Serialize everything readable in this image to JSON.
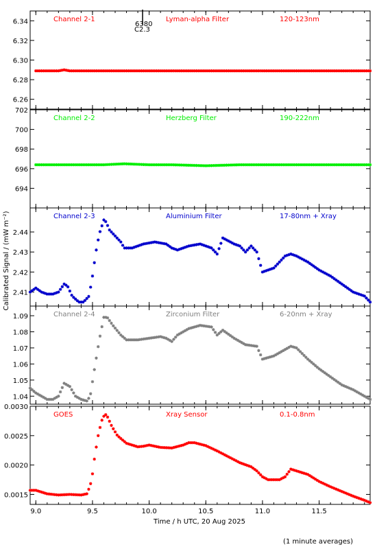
{
  "figure": {
    "ylabel": "Calibrated Signal / (mW m⁻²)",
    "xlabel": "Time / h UTC, 20 Aug 2025",
    "footnote": "(1 minute averages)",
    "annotation": {
      "top": "6380",
      "bottom": "C2.3"
    }
  },
  "chart_data": [
    {
      "type": "scatter",
      "marker": "asterisk",
      "channel": "Channel 2-1",
      "filter": "Lyman-alpha Filter",
      "band": "120-123nm",
      "color": "#ff0000",
      "xlim": [
        8.95,
        11.95
      ],
      "ylim": [
        6.25,
        6.35
      ],
      "yticks": [
        6.26,
        6.28,
        6.3,
        6.32,
        6.34
      ],
      "yticklabels": [
        "6.26",
        "6.28",
        "6.30",
        "6.32",
        "6.34"
      ],
      "x": [
        9.0,
        9.2,
        9.25,
        9.3,
        9.5,
        10.0,
        10.5,
        10.9,
        11.0,
        11.5,
        11.95
      ],
      "y": [
        6.289,
        6.289,
        6.29,
        6.289,
        6.289,
        6.289,
        6.289,
        6.289,
        6.289,
        6.289,
        6.289
      ]
    },
    {
      "type": "scatter",
      "marker": "asterisk",
      "channel": "Channel 2-2",
      "filter": "Herzberg Filter",
      "band": "190-222nm",
      "color": "#00ee00",
      "xlim": [
        8.95,
        11.95
      ],
      "ylim": [
        692,
        702
      ],
      "yticks": [
        694,
        696,
        698,
        700,
        702
      ],
      "yticklabels": [
        "694",
        "696",
        "698",
        "700",
        "702"
      ],
      "x": [
        9.0,
        9.3,
        9.6,
        9.78,
        10.0,
        10.2,
        10.5,
        10.8,
        11.0,
        11.3,
        11.5,
        11.95
      ],
      "y": [
        696.4,
        696.4,
        696.4,
        696.5,
        696.4,
        696.4,
        696.3,
        696.4,
        696.4,
        696.4,
        696.4,
        696.4
      ]
    },
    {
      "type": "scatter",
      "marker": "asterisk",
      "channel": "Channel 2-3",
      "filter": "Aluminium Filter",
      "band": "17-80nm + Xray",
      "color": "#0000cc",
      "xlim": [
        8.95,
        11.95
      ],
      "ylim": [
        2.403,
        2.452
      ],
      "yticks": [
        2.41,
        2.42,
        2.43,
        2.44
      ],
      "yticklabels": [
        "2.41",
        "2.42",
        "2.43",
        "2.44"
      ],
      "x": [
        8.95,
        9.0,
        9.05,
        9.1,
        9.15,
        9.2,
        9.25,
        9.28,
        9.32,
        9.38,
        9.42,
        9.47,
        9.5,
        9.53,
        9.56,
        9.6,
        9.62,
        9.65,
        9.7,
        9.75,
        9.78,
        9.85,
        9.95,
        10.05,
        10.15,
        10.2,
        10.25,
        10.35,
        10.45,
        10.55,
        10.6,
        10.65,
        10.75,
        10.8,
        10.85,
        10.9,
        10.95,
        11.0,
        11.1,
        11.2,
        11.25,
        11.3,
        11.4,
        11.45,
        11.5,
        11.6,
        11.7,
        11.8,
        11.9,
        11.95
      ],
      "y": [
        2.41,
        2.412,
        2.41,
        2.409,
        2.409,
        2.41,
        2.414,
        2.413,
        2.408,
        2.405,
        2.405,
        2.408,
        2.418,
        2.43,
        2.439,
        2.446,
        2.445,
        2.441,
        2.438,
        2.435,
        2.432,
        2.432,
        2.434,
        2.435,
        2.434,
        2.432,
        2.431,
        2.433,
        2.434,
        2.432,
        2.429,
        2.437,
        2.434,
        2.433,
        2.43,
        2.433,
        2.43,
        2.42,
        2.422,
        2.428,
        2.429,
        2.428,
        2.425,
        2.423,
        2.421,
        2.418,
        2.414,
        2.41,
        2.408,
        2.405
      ]
    },
    {
      "type": "scatter",
      "marker": "asterisk",
      "channel": "Channel 2-4",
      "filter": "Zirconium Filter",
      "band": "6-20nm + Xray",
      "color": "#808080",
      "xlim": [
        8.95,
        11.95
      ],
      "ylim": [
        1.035,
        1.096
      ],
      "yticks": [
        1.04,
        1.05,
        1.06,
        1.07,
        1.08,
        1.09
      ],
      "yticklabels": [
        "1.04",
        "1.05",
        "1.06",
        "1.07",
        "1.08",
        "1.09"
      ],
      "x": [
        8.95,
        9.0,
        9.05,
        9.1,
        9.15,
        9.2,
        9.25,
        9.3,
        9.35,
        9.4,
        9.45,
        9.48,
        9.52,
        9.56,
        9.6,
        9.63,
        9.68,
        9.75,
        9.8,
        9.9,
        10.0,
        10.1,
        10.15,
        10.2,
        10.25,
        10.35,
        10.45,
        10.55,
        10.6,
        10.65,
        10.75,
        10.85,
        10.95,
        11.0,
        11.1,
        11.2,
        11.25,
        11.3,
        11.4,
        11.5,
        11.6,
        11.7,
        11.8,
        11.9,
        11.95
      ],
      "y": [
        1.045,
        1.042,
        1.04,
        1.038,
        1.038,
        1.04,
        1.048,
        1.046,
        1.04,
        1.038,
        1.037,
        1.04,
        1.058,
        1.075,
        1.089,
        1.089,
        1.084,
        1.078,
        1.075,
        1.075,
        1.076,
        1.077,
        1.076,
        1.074,
        1.078,
        1.082,
        1.084,
        1.083,
        1.078,
        1.081,
        1.076,
        1.072,
        1.071,
        1.063,
        1.065,
        1.069,
        1.071,
        1.07,
        1.063,
        1.057,
        1.052,
        1.047,
        1.044,
        1.04,
        1.038
      ]
    },
    {
      "type": "scatter",
      "marker": "asterisk",
      "channel": "GOES",
      "filter": "Xray Sensor",
      "band": "0.1-0.8nm",
      "color": "#ff0000",
      "xlim": [
        8.95,
        11.95
      ],
      "ylim": [
        0.00133,
        0.003
      ],
      "yticks": [
        0.0015,
        0.002,
        0.0025,
        0.003
      ],
      "yticklabels": [
        "0.0015",
        "0.0020",
        "0.0025",
        "0.0030"
      ],
      "x": [
        8.95,
        9.0,
        9.05,
        9.1,
        9.2,
        9.3,
        9.4,
        9.45,
        9.48,
        9.5,
        9.52,
        9.55,
        9.58,
        9.61,
        9.63,
        9.67,
        9.72,
        9.8,
        9.9,
        9.95,
        10.0,
        10.1,
        10.2,
        10.3,
        10.35,
        10.4,
        10.5,
        10.6,
        10.7,
        10.8,
        10.9,
        10.95,
        11.0,
        11.05,
        11.15,
        11.2,
        11.25,
        11.3,
        11.4,
        11.5,
        11.6,
        11.7,
        11.8,
        11.9,
        11.95
      ],
      "y": [
        0.00157,
        0.00157,
        0.00154,
        0.00151,
        0.00149,
        0.0015,
        0.00149,
        0.00151,
        0.00165,
        0.00185,
        0.00215,
        0.0025,
        0.00275,
        0.00287,
        0.00283,
        0.00266,
        0.0025,
        0.00237,
        0.00231,
        0.00232,
        0.00234,
        0.0023,
        0.00229,
        0.00234,
        0.00238,
        0.00238,
        0.00233,
        0.00224,
        0.00214,
        0.00204,
        0.00197,
        0.0019,
        0.0018,
        0.00175,
        0.00175,
        0.0018,
        0.00193,
        0.0019,
        0.00184,
        0.00172,
        0.00163,
        0.00155,
        0.00147,
        0.0014,
        0.00136
      ]
    }
  ],
  "xaxis": {
    "xlim": [
      8.95,
      11.95
    ],
    "ticks": [
      9.0,
      9.5,
      10.0,
      10.5,
      11.0,
      11.5
    ],
    "ticklabels": [
      "9.0",
      "9.5",
      "10.0",
      "10.5",
      "11.0",
      "11.5"
    ]
  }
}
